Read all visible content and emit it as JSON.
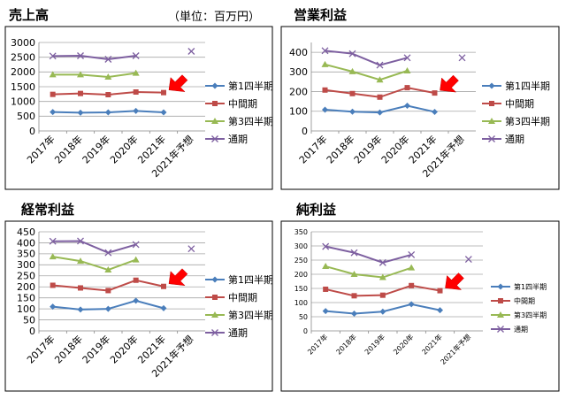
{
  "page": {
    "unit_label": "（単位：百万円）"
  },
  "chart_data": [
    {
      "type": "line",
      "title": "売上高",
      "categories": [
        "2017年",
        "2018年",
        "2019年",
        "2020年",
        "2021年",
        "2021年予想"
      ],
      "ylim": [
        0,
        3000
      ],
      "yticks": [
        0,
        500,
        1000,
        1500,
        2000,
        2500,
        3000
      ],
      "grid": true,
      "legend": "right",
      "arrow_marker_at": [
        "中間期",
        "2021年"
      ],
      "series": [
        {
          "name": "第1四半期",
          "color": "#4A7EBB",
          "marker": "diamond",
          "values": [
            640,
            620,
            630,
            680,
            630,
            null
          ]
        },
        {
          "name": "中間期",
          "color": "#BE4B48",
          "marker": "square",
          "values": [
            1240,
            1270,
            1230,
            1320,
            1300,
            null
          ]
        },
        {
          "name": "第3四半期",
          "color": "#98B954",
          "marker": "triangle",
          "values": [
            1910,
            1910,
            1830,
            1960,
            null,
            null
          ]
        },
        {
          "name": "通期",
          "color": "#7D5FA0",
          "marker": "x",
          "values": [
            2540,
            2550,
            2430,
            2550,
            null,
            2700
          ]
        }
      ]
    },
    {
      "type": "line",
      "title": "営業利益",
      "categories": [
        "2017年",
        "2018年",
        "2019年",
        "2020年",
        "2021年",
        "2021年予想"
      ],
      "ylim": [
        0,
        450
      ],
      "yticks": [
        0,
        100,
        200,
        300,
        400
      ],
      "grid": true,
      "legend": "right",
      "arrow_marker_at": [
        "中間期",
        "2021年"
      ],
      "series": [
        {
          "name": "第1四半期",
          "color": "#4A7EBB",
          "marker": "diamond",
          "values": [
            108,
            98,
            94,
            128,
            97,
            null
          ]
        },
        {
          "name": "中間期",
          "color": "#BE4B48",
          "marker": "square",
          "values": [
            208,
            190,
            172,
            220,
            193,
            null
          ]
        },
        {
          "name": "第3四半期",
          "color": "#98B954",
          "marker": "triangle",
          "values": [
            338,
            302,
            260,
            306,
            null,
            null
          ]
        },
        {
          "name": "通期",
          "color": "#7D5FA0",
          "marker": "x",
          "values": [
            408,
            393,
            335,
            372,
            null,
            372
          ]
        }
      ]
    },
    {
      "type": "line",
      "title": "経常利益",
      "categories": [
        "2017年",
        "2018年",
        "2019年",
        "2020年",
        "2021年",
        "2021年予想"
      ],
      "ylim": [
        0,
        450
      ],
      "yticks": [
        0,
        50,
        100,
        150,
        200,
        250,
        300,
        350,
        400,
        450
      ],
      "grid": true,
      "legend": "right",
      "arrow_marker_at": [
        "中間期",
        "2021年"
      ],
      "series": [
        {
          "name": "第1四半期",
          "color": "#4A7EBB",
          "marker": "diamond",
          "values": [
            110,
            97,
            100,
            137,
            103,
            null
          ]
        },
        {
          "name": "中間期",
          "color": "#BE4B48",
          "marker": "square",
          "values": [
            207,
            195,
            183,
            230,
            202,
            null
          ]
        },
        {
          "name": "第3四半期",
          "color": "#98B954",
          "marker": "triangle",
          "values": [
            337,
            317,
            277,
            323,
            null,
            null
          ]
        },
        {
          "name": "通期",
          "color": "#7D5FA0",
          "marker": "x",
          "values": [
            407,
            408,
            355,
            392,
            null,
            373
          ]
        }
      ]
    },
    {
      "type": "line",
      "title": "純利益",
      "categories": [
        "2017年",
        "2018年",
        "2019年",
        "2020年",
        "2021年",
        "2021年予想"
      ],
      "ylim": [
        0,
        350
      ],
      "yticks": [
        0,
        50,
        100,
        150,
        200,
        250,
        300,
        350
      ],
      "grid": true,
      "legend": "right",
      "arrow_marker_at": [
        "中間期",
        "2021年"
      ],
      "series": [
        {
          "name": "第1四半期",
          "color": "#4A7EBB",
          "marker": "diamond",
          "values": [
            70,
            61,
            68,
            94,
            73,
            null
          ]
        },
        {
          "name": "中間期",
          "color": "#BE4B48",
          "marker": "square",
          "values": [
            147,
            124,
            126,
            160,
            142,
            null
          ]
        },
        {
          "name": "第3四半期",
          "color": "#98B954",
          "marker": "triangle",
          "values": [
            228,
            200,
            189,
            223,
            null,
            null
          ]
        },
        {
          "name": "通期",
          "color": "#7D5FA0",
          "marker": "x",
          "values": [
            298,
            276,
            241,
            269,
            null,
            253
          ]
        }
      ]
    }
  ]
}
